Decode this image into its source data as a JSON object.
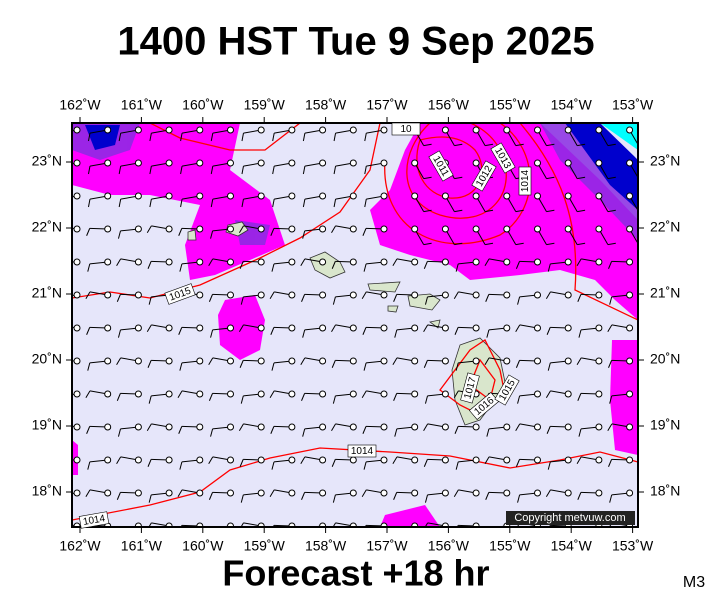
{
  "header": {
    "title": "1400 HST Tue 9 Sep 2025"
  },
  "footer": {
    "forecast": "Forecast +18 hr",
    "model": "M3"
  },
  "map": {
    "lon_labels": [
      "162˚W",
      "161˚W",
      "160˚W",
      "159˚W",
      "158˚W",
      "157˚W",
      "156˚W",
      "155˚W",
      "154˚W",
      "153˚W"
    ],
    "lat_labels": [
      "23˚N",
      "22˚N",
      "21˚N",
      "20˚N",
      "19˚N",
      "18˚N"
    ],
    "isobar_labels": [
      "1015",
      "1014",
      "1014",
      "1011",
      "1012",
      "1013",
      "1014",
      "1017",
      "1016",
      "1015",
      "10"
    ],
    "copyright": "Copyright metvuw.com"
  }
}
